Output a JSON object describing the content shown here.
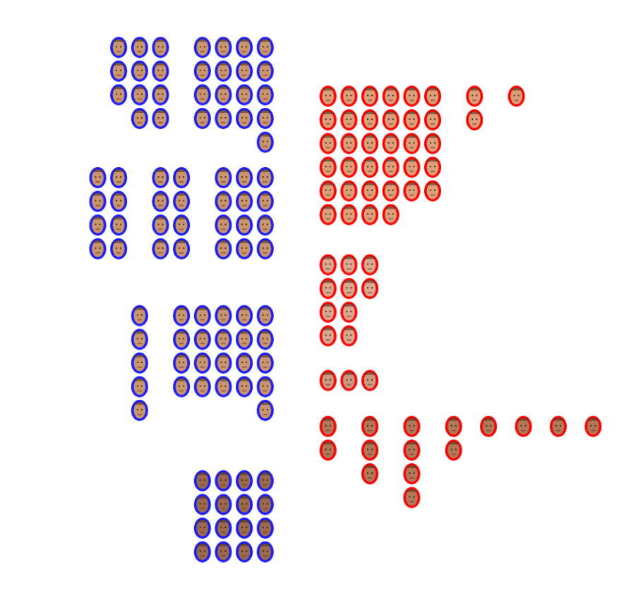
{
  "chart_data": {
    "type": "pictogram",
    "tick_labels": false,
    "series": [
      {
        "color": "#1a1aff",
        "values": [
          11,
          17,
          8,
          8,
          12
        ]
      },
      {
        "color": "#1a1aff",
        "values": [
          5,
          21
        ]
      },
      {
        "color": "#1a1aff",
        "values": [
          16
        ]
      },
      {
        "color": "#ff0000",
        "values": [
          34,
          2,
          1
        ]
      },
      {
        "color": "#ff0000",
        "values": [
          10
        ]
      },
      {
        "color": "#ff0000",
        "values": [
          3
        ]
      },
      {
        "color": "#ff0000",
        "values": [
          2,
          3,
          4,
          2,
          1,
          1,
          1,
          1
        ]
      }
    ]
  }
}
